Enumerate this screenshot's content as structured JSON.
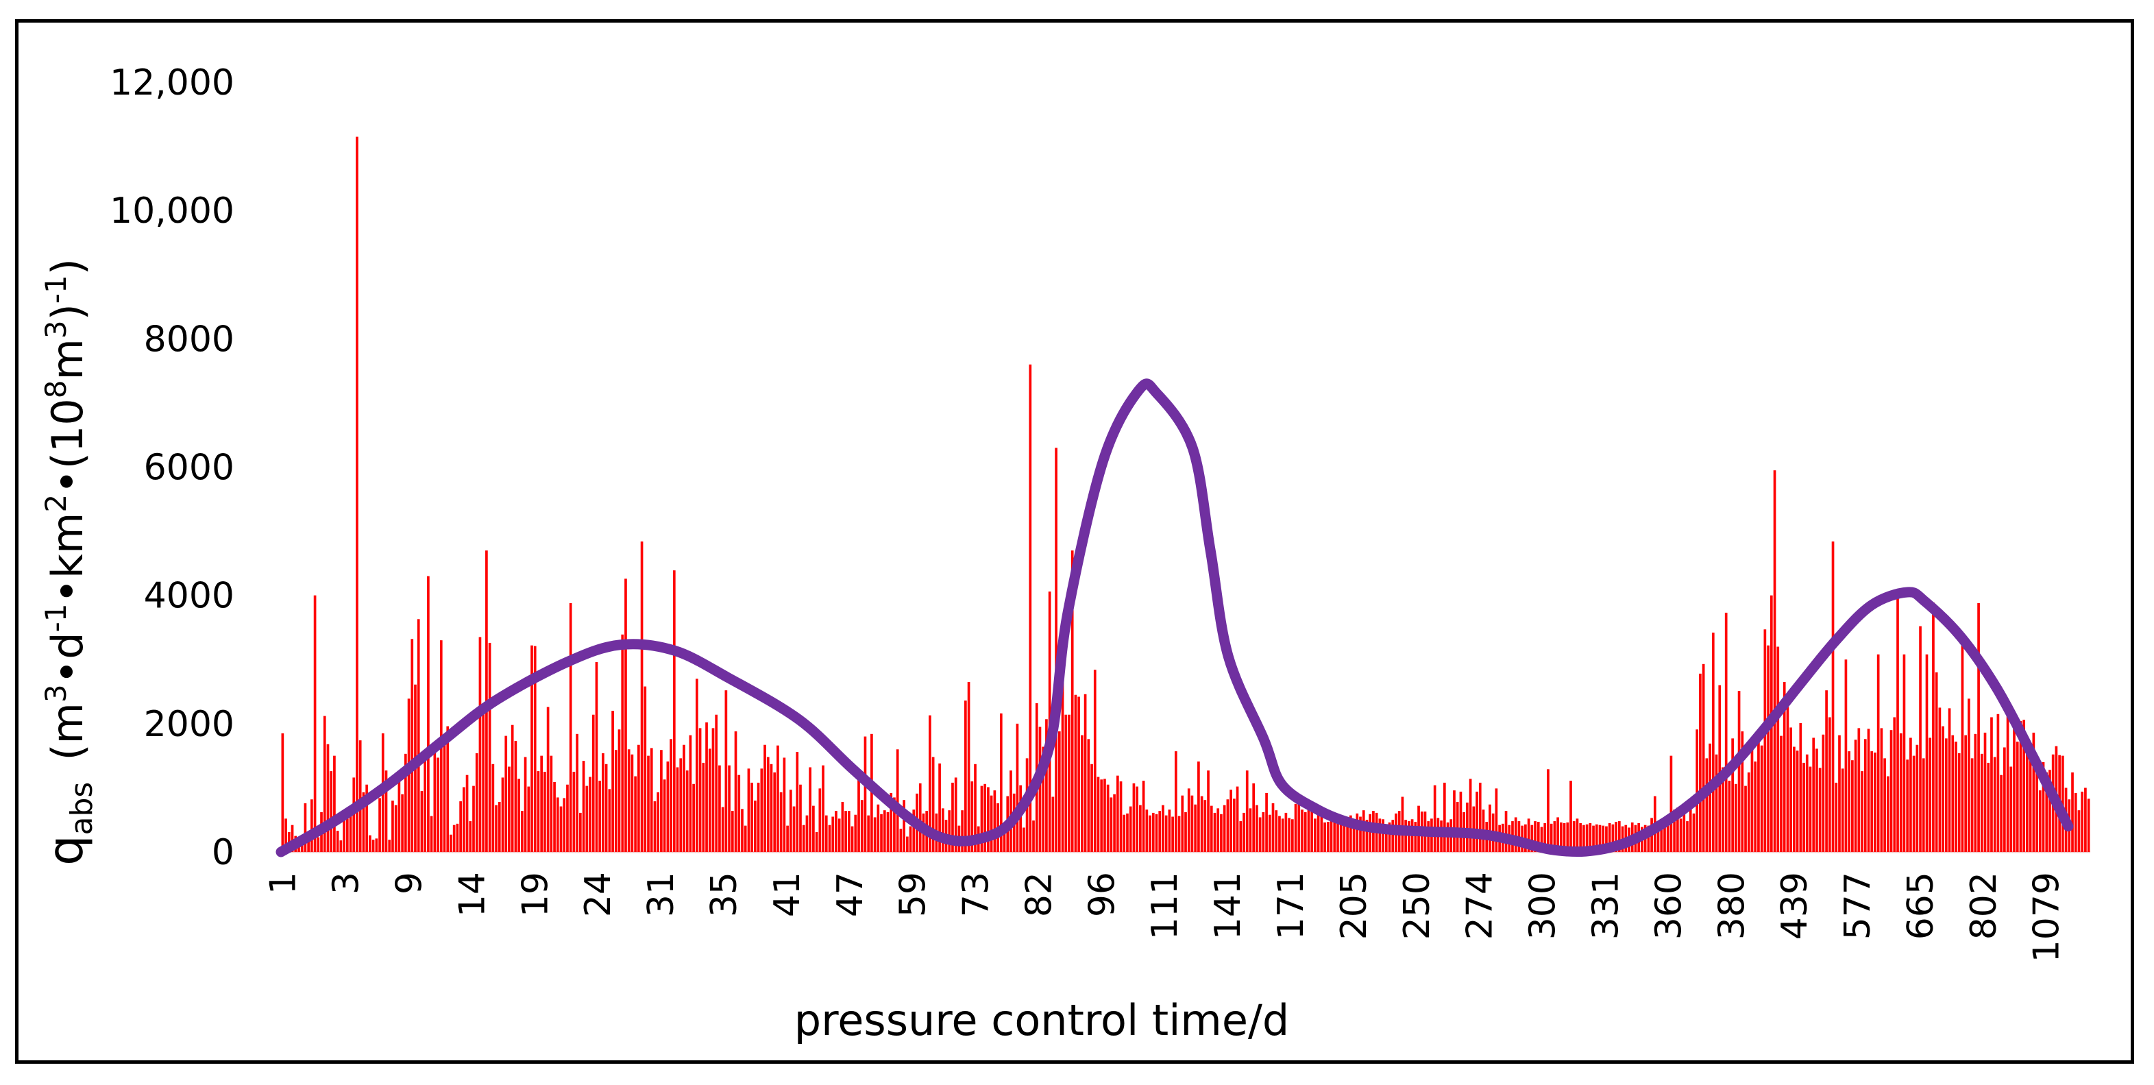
{
  "chart_data": {
    "type": "bar",
    "title": "",
    "xlabel": "pressure control time/d",
    "ylabel": {
      "symbol": "q",
      "symbol_sub": "abs",
      "unit_parts": [
        "(m",
        "3",
        "•d",
        "-1",
        "•km",
        "2",
        "•(10",
        "8",
        "m",
        "3",
        ")",
        "-1",
        ")"
      ]
    },
    "ylim": [
      0,
      12000
    ],
    "yticks": [
      0,
      2000,
      4000,
      6000,
      8000,
      10000,
      12000
    ],
    "ytick_labels": [
      "0",
      "2000",
      "4000",
      "6000",
      "8000",
      "10,000",
      "12,000"
    ],
    "xtick_labels": [
      "1",
      "3",
      "9",
      "14",
      "19",
      "24",
      "31",
      "35",
      "41",
      "47",
      "59",
      "73",
      "82",
      "96",
      "111",
      "141",
      "171",
      "205",
      "250",
      "274",
      "300",
      "331",
      "360",
      "380",
      "439",
      "577",
      "665",
      "802",
      "1079"
    ],
    "series": [
      {
        "name": "q_abs",
        "kind": "bar",
        "color": "#ff0000",
        "values": [
          1850,
          520,
          310,
          420,
          250,
          180,
          120,
          760,
          240,
          820,
          4000,
          230,
          620,
          2120,
          1680,
          1260,
          1500,
          330,
          180,
          620,
          520,
          610,
          1160,
          11150,
          1740,
          930,
          1050,
          260,
          190,
          210,
          840,
          1850,
          1270,
          190,
          800,
          730,
          1130,
          900,
          1530,
          2390,
          3320,
          2610,
          3630,
          950,
          1430,
          4300,
          560,
          1640,
          1470,
          3300,
          1810,
          1960,
          270,
          420,
          440,
          790,
          1010,
          1200,
          480,
          1030,
          1540,
          3350,
          2200,
          4700,
          3260,
          1370,
          730,
          780,
          1160,
          1810,
          1330,
          1980,
          1730,
          1140,
          640,
          1480,
          1020,
          3220,
          3210,
          1260,
          1500,
          1250,
          2260,
          1500,
          1090,
          850,
          710,
          840,
          1050,
          3880,
          1250,
          1840,
          610,
          1420,
          1030,
          1170,
          2140,
          2960,
          1110,
          1540,
          1370,
          980,
          2200,
          1590,
          1910,
          3390,
          4260,
          1600,
          1520,
          1180,
          1670,
          4840,
          2580,
          1500,
          1620,
          790,
          930,
          1590,
          1130,
          1410,
          1760,
          4390,
          1320,
          1460,
          1670,
          1270,
          1820,
          1060,
          2700,
          1930,
          1390,
          2020,
          1610,
          1930,
          2140,
          1350,
          700,
          2520,
          1350,
          640,
          1880,
          1200,
          670,
          410,
          1300,
          1080,
          800,
          1080,
          1300,
          1670,
          1480,
          1370,
          1240,
          1660,
          930,
          1470,
          410,
          970,
          710,
          1560,
          1050,
          420,
          570,
          1320,
          720,
          310,
          990,
          1350,
          570,
          420,
          550,
          640,
          520,
          780,
          640,
          640,
          400,
          580,
          1210,
          810,
          1800,
          570,
          1840,
          540,
          740,
          590,
          650,
          620,
          920,
          850,
          1600,
          360,
          810,
          240,
          400,
          660,
          910,
          1070,
          600,
          640,
          2130,
          1480,
          600,
          1380,
          680,
          500,
          650,
          1080,
          1160,
          410,
          650,
          2360,
          2650,
          1100,
          1370,
          400,
          1030,
          1060,
          1010,
          880,
          960,
          760,
          2160,
          440,
          870,
          1270,
          910,
          2000,
          1040,
          380,
          1460,
          7600,
          490,
          2320,
          1950,
          1640,
          2070,
          4060,
          860,
          6300,
          1880,
          2770,
          2140,
          2140,
          4700,
          2450,
          2420,
          1820,
          2460,
          1760,
          1370,
          2840,
          1170,
          1130,
          1140,
          1050,
          850,
          900,
          1190,
          1100,
          580,
          600,
          710,
          1070,
          1020,
          730,
          1110,
          660,
          570,
          610,
          590,
          640,
          730,
          570,
          660,
          550,
          1570,
          560,
          880,
          620,
          990,
          880,
          740,
          1410,
          870,
          810,
          1270,
          720,
          610,
          680,
          590,
          730,
          820,
          970,
          830,
          1020,
          480,
          610,
          1270,
          680,
          1070,
          730,
          540,
          620,
          920,
          580,
          760,
          650,
          560,
          520,
          610,
          530,
          510,
          750,
          760,
          660,
          620,
          720,
          730,
          520,
          580,
          640,
          460,
          470,
          510,
          550,
          460,
          510,
          420,
          450,
          570,
          490,
          600,
          550,
          650,
          500,
          590,
          640,
          610,
          520,
          510,
          420,
          460,
          500,
          600,
          640,
          860,
          500,
          480,
          510,
          470,
          720,
          630,
          630,
          480,
          520,
          1040,
          530,
          490,
          1080,
          460,
          510,
          960,
          780,
          940,
          620,
          770,
          1140,
          710,
          940,
          1080,
          660,
          470,
          740,
          600,
          990,
          420,
          440,
          640,
          420,
          480,
          540,
          480,
          410,
          430,
          520,
          420,
          480,
          470,
          390,
          450,
          1290,
          440,
          480,
          540,
          460,
          450,
          460,
          1110,
          480,
          520,
          450,
          420,
          430,
          450,
          410,
          430,
          420,
          410,
          400,
          450,
          430,
          470,
          480,
          400,
          420,
          380,
          460,
          420,
          450,
          390,
          420,
          410,
          530,
          870,
          420,
          470,
          450,
          420,
          1500,
          660,
          690,
          520,
          620,
          480,
          670,
          600,
          1910,
          2780,
          2930,
          1460,
          1690,
          3420,
          1520,
          2600,
          1320,
          3730,
          1110,
          1770,
          1060,
          2510,
          1880,
          1030,
          1240,
          1760,
          1410,
          1790,
          1660,
          3470,
          3220,
          4000,
          5950,
          3200,
          1810,
          2650,
          2260,
          1940,
          1640,
          1580,
          2010,
          1390,
          1520,
          1330,
          1780,
          1610,
          1310,
          1830,
          2520,
          2100,
          4840,
          1080,
          1820,
          1300,
          3000,
          1570,
          1430,
          1750,
          1930,
          1260,
          1760,
          1920,
          1570,
          1550,
          3080,
          1930,
          1460,
          1180,
          1900,
          2100,
          4050,
          1850,
          3080,
          1440,
          1780,
          1500,
          1670,
          3520,
          1460,
          3080,
          1780,
          3890,
          2800,
          2250,
          1960,
          1770,
          2240,
          1820,
          1720,
          1540,
          3290,
          1820,
          2390,
          1460,
          1840,
          3880,
          1530,
          1860,
          1390,
          2100,
          1480,
          2150,
          1200,
          1630,
          2210,
          1330,
          2010,
          1720,
          2040,
          2060,
          1700,
          1640,
          1860,
          1500,
          960,
          1400,
          1240,
          1280,
          1520,
          1650,
          1510,
          1500,
          1000,
          820,
          1240,
          920,
          650,
          940,
          1000,
          830
        ]
      },
      {
        "name": "trend",
        "kind": "line",
        "color": "#7030a0",
        "x": [
          0,
          0.03,
          0.06,
          0.09,
          0.12,
          0.16,
          0.19,
          0.22,
          0.25,
          0.29,
          0.32,
          0.35,
          0.37,
          0.39,
          0.41,
          0.43,
          0.44,
          0.46,
          0.48,
          0.49,
          0.51,
          0.52,
          0.53,
          0.55,
          0.56,
          0.58,
          0.6,
          0.62,
          0.64,
          0.67,
          0.69,
          0.71,
          0.73,
          0.75,
          0.77,
          0.79,
          0.81,
          0.83,
          0.85,
          0.87,
          0.89,
          0.91,
          0.92,
          0.94,
          0.96,
          0.98,
          1
        ],
        "values": [
          0,
          480,
          1050,
          1720,
          2360,
          2960,
          3230,
          3140,
          2720,
          2060,
          1290,
          560,
          220,
          200,
          520,
          1650,
          3700,
          6100,
          7200,
          7150,
          6300,
          4700,
          3050,
          1750,
          1050,
          660,
          440,
          350,
          320,
          280,
          180,
          40,
          10,
          120,
          390,
          780,
          1280,
          1920,
          2620,
          3300,
          3850,
          4050,
          3900,
          3350,
          2550,
          1500,
          400
        ]
      }
    ]
  }
}
